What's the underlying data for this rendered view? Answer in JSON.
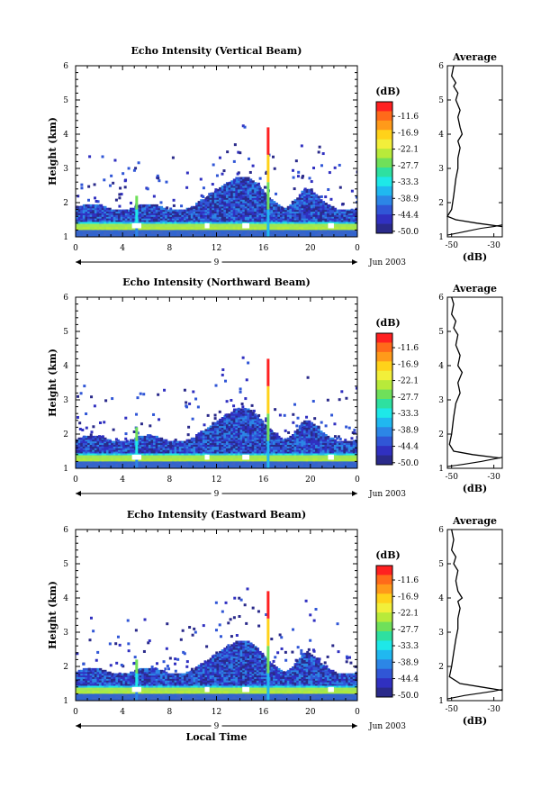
{
  "chart_data": [
    {
      "type": "heatmap",
      "title": "Echo Intensity (Vertical Beam)",
      "ylabel": "Height (km)",
      "xticks": [
        "0",
        "4",
        "8",
        "12",
        "16",
        "20",
        "0"
      ],
      "yticks": [
        "1",
        "2",
        "3",
        "4",
        "5",
        "6"
      ],
      "xlim": [
        0,
        24
      ],
      "ylim": [
        1,
        6
      ],
      "day_label": "9",
      "date_label": "Jun 2003",
      "colorbar": {
        "unit": "(dB)",
        "ticks": [
          "-11.6",
          "-16.9",
          "-22.1",
          "-27.7",
          "-33.3",
          "-38.9",
          "-44.4",
          "-50.0"
        ],
        "colors": [
          "#ff2020",
          "#ff6a1a",
          "#ff9a1a",
          "#ffd21a",
          "#f2ef3a",
          "#b8ea3a",
          "#6fe05a",
          "#2ee0a0",
          "#1ee8e8",
          "#20b8f0",
          "#2c86e6",
          "#3056d6",
          "#3030c0",
          "#2a2a8a"
        ]
      },
      "average": {
        "title": "Average",
        "xlabel": "(dB)",
        "xticks": [
          "-50",
          "-30"
        ],
        "xlim": [
          -52,
          -26
        ],
        "profile": [
          [
            -26,
            1.3
          ],
          [
            -38,
            1.4
          ],
          [
            -48,
            1.5
          ],
          [
            -52,
            1.6
          ],
          [
            -50,
            1.8
          ],
          [
            -49,
            2.2
          ],
          [
            -48,
            2.7
          ],
          [
            -47,
            3.0
          ],
          [
            -47,
            3.3
          ],
          [
            -46,
            3.6
          ],
          [
            -47,
            3.8
          ],
          [
            -45,
            4.0
          ],
          [
            -46,
            4.2
          ],
          [
            -47,
            4.5
          ],
          [
            -46,
            4.7
          ],
          [
            -48,
            5.0
          ],
          [
            -47,
            5.2
          ],
          [
            -49,
            5.4
          ],
          [
            -48,
            5.5
          ],
          [
            -50,
            5.7
          ],
          [
            -49,
            6.0
          ]
        ],
        "xcurve": [
          [
            -52,
            1.05
          ],
          [
            -44,
            1.15
          ],
          [
            -36,
            1.25
          ],
          [
            -30,
            1.3
          ],
          [
            -26,
            1.35
          ]
        ]
      }
    },
    {
      "type": "heatmap",
      "title": "Echo Intensity (Northward Beam)",
      "ylabel": "Height (km)",
      "xticks": [
        "0",
        "4",
        "8",
        "12",
        "16",
        "20",
        "0"
      ],
      "yticks": [
        "1",
        "2",
        "3",
        "4",
        "5",
        "6"
      ],
      "xlim": [
        0,
        24
      ],
      "ylim": [
        1,
        6
      ],
      "day_label": "9",
      "date_label": "Jun 2003",
      "colorbar": {
        "unit": "(dB)",
        "ticks": [
          "-11.6",
          "-16.9",
          "-22.1",
          "-27.7",
          "-33.3",
          "-38.9",
          "-44.4",
          "-50.0"
        ],
        "colors": [
          "#ff2020",
          "#ff6a1a",
          "#ff9a1a",
          "#ffd21a",
          "#f2ef3a",
          "#b8ea3a",
          "#6fe05a",
          "#2ee0a0",
          "#1ee8e8",
          "#20b8f0",
          "#2c86e6",
          "#3056d6",
          "#3030c0",
          "#2a2a8a"
        ]
      },
      "average": {
        "title": "Average",
        "xlabel": "(dB)",
        "xticks": [
          "-50",
          "-30"
        ],
        "xlim": [
          -52,
          -26
        ],
        "profile": [
          [
            -27,
            1.3
          ],
          [
            -40,
            1.4
          ],
          [
            -49,
            1.5
          ],
          [
            -51,
            1.7
          ],
          [
            -50,
            2.0
          ],
          [
            -49,
            2.5
          ],
          [
            -48,
            2.9
          ],
          [
            -46,
            3.2
          ],
          [
            -47,
            3.5
          ],
          [
            -45,
            3.8
          ],
          [
            -47,
            4.0
          ],
          [
            -46,
            4.3
          ],
          [
            -48,
            4.6
          ],
          [
            -47,
            4.9
          ],
          [
            -49,
            5.1
          ],
          [
            -48,
            5.3
          ],
          [
            -50,
            5.5
          ],
          [
            -49,
            5.8
          ],
          [
            -50,
            6.0
          ]
        ],
        "xcurve": [
          [
            -52,
            1.05
          ],
          [
            -44,
            1.12
          ],
          [
            -36,
            1.2
          ],
          [
            -30,
            1.27
          ],
          [
            -26,
            1.32
          ]
        ]
      }
    },
    {
      "type": "heatmap",
      "title": "Echo Intensity (Eastward Beam)",
      "ylabel": "Height (km)",
      "xlabel": "Local Time",
      "xticks": [
        "0",
        "4",
        "8",
        "12",
        "16",
        "20",
        "0"
      ],
      "yticks": [
        "1",
        "2",
        "3",
        "4",
        "5",
        "6"
      ],
      "xlim": [
        0,
        24
      ],
      "ylim": [
        1,
        6
      ],
      "day_label": "9",
      "date_label": "Jun 2003",
      "colorbar": {
        "unit": "(dB)",
        "ticks": [
          "-11.6",
          "-16.9",
          "-22.1",
          "-27.7",
          "-33.3",
          "-38.9",
          "-44.4",
          "-50.0"
        ],
        "colors": [
          "#ff2020",
          "#ff6a1a",
          "#ff9a1a",
          "#ffd21a",
          "#f2ef3a",
          "#b8ea3a",
          "#6fe05a",
          "#2ee0a0",
          "#1ee8e8",
          "#20b8f0",
          "#2c86e6",
          "#3056d6",
          "#3030c0",
          "#2a2a8a"
        ]
      },
      "average": {
        "title": "Average",
        "xlabel": "(dB)",
        "xticks": [
          "-50",
          "-30"
        ],
        "xlim": [
          -52,
          -26
        ],
        "profile": [
          [
            -26,
            1.3
          ],
          [
            -36,
            1.4
          ],
          [
            -46,
            1.5
          ],
          [
            -51,
            1.7
          ],
          [
            -50,
            2.0
          ],
          [
            -49,
            2.4
          ],
          [
            -48,
            2.8
          ],
          [
            -47,
            3.1
          ],
          [
            -47,
            3.4
          ],
          [
            -46,
            3.7
          ],
          [
            -47,
            3.9
          ],
          [
            -45,
            4.0
          ],
          [
            -47,
            4.2
          ],
          [
            -48,
            4.5
          ],
          [
            -47,
            4.8
          ],
          [
            -49,
            5.0
          ],
          [
            -48,
            5.2
          ],
          [
            -50,
            5.4
          ],
          [
            -49,
            5.7
          ],
          [
            -50,
            6.0
          ]
        ],
        "xcurve": [
          [
            -52,
            1.05
          ],
          [
            -44,
            1.15
          ],
          [
            -36,
            1.22
          ],
          [
            -30,
            1.28
          ],
          [
            -26,
            1.33
          ]
        ]
      }
    }
  ]
}
